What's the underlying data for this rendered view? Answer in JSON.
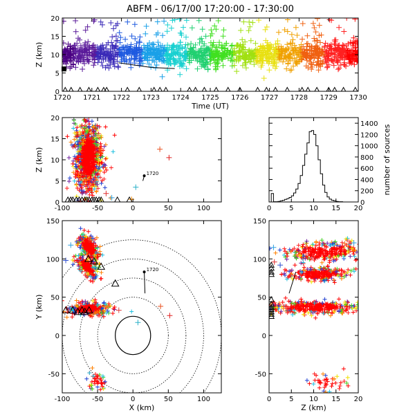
{
  "title": "ABFM - 06/17/00 17:20:00 - 17:30:00",
  "chart_data": [
    {
      "id": "time_height",
      "type": "scatter",
      "xlabel": "Time (UT)",
      "ylabel": "Z (km)",
      "xlim": [
        1720,
        1730
      ],
      "ylim": [
        0,
        20
      ],
      "xticks": [
        1720,
        1721,
        1722,
        1723,
        1724,
        1725,
        1726,
        1727,
        1728,
        1729,
        1730
      ],
      "yticks": [
        0,
        5,
        10,
        15,
        20
      ],
      "marker": "plus",
      "color_by": "time (purple to red)",
      "band": {
        "z_low": 7,
        "z_core": 10,
        "z_high": 13
      },
      "scattered_top_z": [
        15,
        20
      ],
      "ground_triangles_t": [
        1720.1,
        1720.3,
        1720.6,
        1720.9,
        1721.2,
        1721.4,
        1721.5,
        1722.2,
        1722.6,
        1723.1,
        1723.3,
        1723.5,
        1724.3,
        1724.5,
        1724.8,
        1725.2,
        1725.6,
        1726.0,
        1726.6,
        1726.9,
        1727.2,
        1727.6,
        1728.1,
        1728.3,
        1728.6,
        1729.0,
        1729.2,
        1729.5,
        1729.9
      ],
      "station_track": [
        [
          1721.9,
          7.8
        ],
        [
          1723.0,
          6.5
        ],
        [
          1723.8,
          6.2
        ]
      ]
    },
    {
      "id": "x_z",
      "type": "scatter",
      "xlabel": "",
      "ylabel": "Z (km)",
      "xlim": [
        -100,
        125
      ],
      "ylim": [
        0,
        20
      ],
      "xticks": [
        -100,
        -50,
        0,
        50,
        100
      ],
      "yticks": [
        0,
        5,
        10,
        15,
        20
      ],
      "marker": "plus",
      "main_cluster": {
        "x_center": -63,
        "x_halfwidth": 14,
        "z_center": 10.5,
        "z_halfwidth": 6
      },
      "outliers": [
        [
          38,
          12.5,
          "#e8501f"
        ],
        [
          51,
          10.5,
          "#e02020"
        ],
        [
          4,
          3.5,
          "#2ab0c8"
        ],
        [
          -2,
          0.6,
          "#ff8c00"
        ],
        [
          -38,
          2,
          "#e03030"
        ],
        [
          -30,
          1,
          "#30a0e0"
        ]
      ],
      "ground_triangles_x": [
        -92,
        -88,
        -85,
        -80,
        -76,
        -72,
        -68,
        -65,
        -62,
        -58,
        -55,
        -52,
        -48,
        -45,
        -22,
        -5
      ],
      "station_label": "1720",
      "station_point": [
        16,
        6.2
      ],
      "station_track_end": [
        14,
        5
      ]
    },
    {
      "id": "histogram",
      "type": "bar",
      "xlabel": "",
      "ylabel": "number of sources",
      "xlim": [
        0,
        20
      ],
      "ylim": [
        0,
        1500
      ],
      "xticks": [
        0,
        5,
        10,
        15,
        20
      ],
      "yticks": [
        0,
        200,
        400,
        600,
        800,
        1000,
        1200,
        1400
      ],
      "bin_width": 0.5,
      "bins_start": [
        0,
        0.5,
        1,
        1.5,
        2,
        2.5,
        3,
        3.5,
        4,
        4.5,
        5,
        5.5,
        6,
        6.5,
        7,
        7.5,
        8,
        8.5,
        9,
        9.5,
        10,
        10.5,
        11,
        11.5,
        12,
        12.5,
        13,
        13.5,
        14,
        14.5,
        15,
        15.5,
        16,
        16.5,
        17,
        17.5,
        18,
        18.5,
        19,
        19.5
      ],
      "values": [
        0,
        150,
        5,
        5,
        10,
        20,
        30,
        45,
        60,
        80,
        110,
        160,
        230,
        330,
        470,
        650,
        850,
        1050,
        1250,
        1270,
        1200,
        1000,
        750,
        500,
        300,
        170,
        90,
        50,
        30,
        20,
        10,
        5,
        5,
        0,
        0,
        0,
        0,
        0,
        0,
        0
      ]
    },
    {
      "id": "x_y",
      "type": "scatter",
      "xlabel": "X (km)",
      "ylabel": "Y (km)",
      "xlim": [
        -100,
        125
      ],
      "ylim": [
        -75,
        150
      ],
      "xticks": [
        -100,
        -50,
        0,
        50,
        100
      ],
      "yticks": [
        -50,
        0,
        50,
        100,
        150
      ],
      "marker": "plus",
      "range_rings_km": [
        25,
        50,
        75,
        100,
        125
      ],
      "ring_center": [
        0,
        0
      ],
      "clusters": [
        {
          "x": -62,
          "y": 115,
          "rx": 14,
          "ry": 7,
          "angle": -55
        },
        {
          "x": -65,
          "y": 90,
          "rx": 12,
          "ry": 6,
          "angle": -45
        },
        {
          "x": -62,
          "y": 35,
          "rx": 20,
          "ry": 6,
          "angle": 0
        },
        {
          "x": -50,
          "y": -60,
          "rx": 8,
          "ry": 10,
          "angle": 60
        }
      ],
      "outliers": [
        [
          39,
          38,
          "#e8501f"
        ],
        [
          52,
          26,
          "#e02020"
        ],
        [
          7,
          17,
          "#2ab0c8"
        ],
        [
          -20,
          33,
          "#e04040"
        ],
        [
          -35,
          38,
          "#f07020"
        ],
        [
          -88,
          118,
          "#30a0e0"
        ],
        [
          -95,
          98,
          "#3050d0"
        ],
        [
          -90,
          35,
          "#3050d0"
        ]
      ],
      "ground_triangles": [
        [
          -55,
          97
        ],
        [
          -45,
          90
        ],
        [
          -63,
          100
        ],
        [
          -25,
          68
        ],
        [
          -95,
          33
        ],
        [
          -85,
          33
        ],
        [
          -78,
          31
        ],
        [
          -72,
          33
        ],
        [
          -68,
          31
        ],
        [
          -62,
          33
        ]
      ],
      "station_label": "1720",
      "station_point": [
        16,
        83
      ],
      "station_track_end": [
        17,
        55
      ]
    },
    {
      "id": "z_y",
      "type": "scatter",
      "xlabel": "Z (km)",
      "ylabel": "",
      "xlim": [
        0,
        20
      ],
      "ylim": [
        -75,
        150
      ],
      "xticks": [
        0,
        5,
        10,
        15,
        20
      ],
      "yticks": [
        -50,
        0,
        50,
        100,
        150
      ],
      "marker": "plus",
      "clusters": [
        {
          "z": 12,
          "y": 110,
          "rz": 6,
          "ry": 9,
          "angle": -12
        },
        {
          "z": 11,
          "y": 80,
          "rz": 5,
          "ry": 6,
          "angle": 0
        },
        {
          "z": 10,
          "y": 37,
          "rz": 8,
          "ry": 6,
          "angle": 0
        },
        {
          "z": 12.5,
          "y": -62,
          "rz": 3,
          "ry": 9,
          "angle": 0
        }
      ],
      "outliers": [
        [
          1,
          115,
          "#30a0e0"
        ],
        [
          2.5,
          92,
          "#3050d0"
        ],
        [
          1.2,
          96,
          "#e03030"
        ],
        [
          17,
          120,
          "#f07020"
        ],
        [
          19,
          121,
          "#30a0e0"
        ]
      ],
      "ground_triangles": [
        [
          0.5,
          92
        ],
        [
          0.5,
          88
        ],
        [
          0.5,
          83
        ],
        [
          0.5,
          80
        ],
        [
          0.5,
          47
        ],
        [
          0.5,
          41
        ],
        [
          0.5,
          37
        ],
        [
          0.5,
          34
        ],
        [
          0.5,
          31
        ],
        [
          0.5,
          28
        ],
        [
          0.5,
          25
        ]
      ],
      "station_track": [
        [
          6,
          83
        ],
        [
          4.5,
          55
        ]
      ]
    }
  ]
}
